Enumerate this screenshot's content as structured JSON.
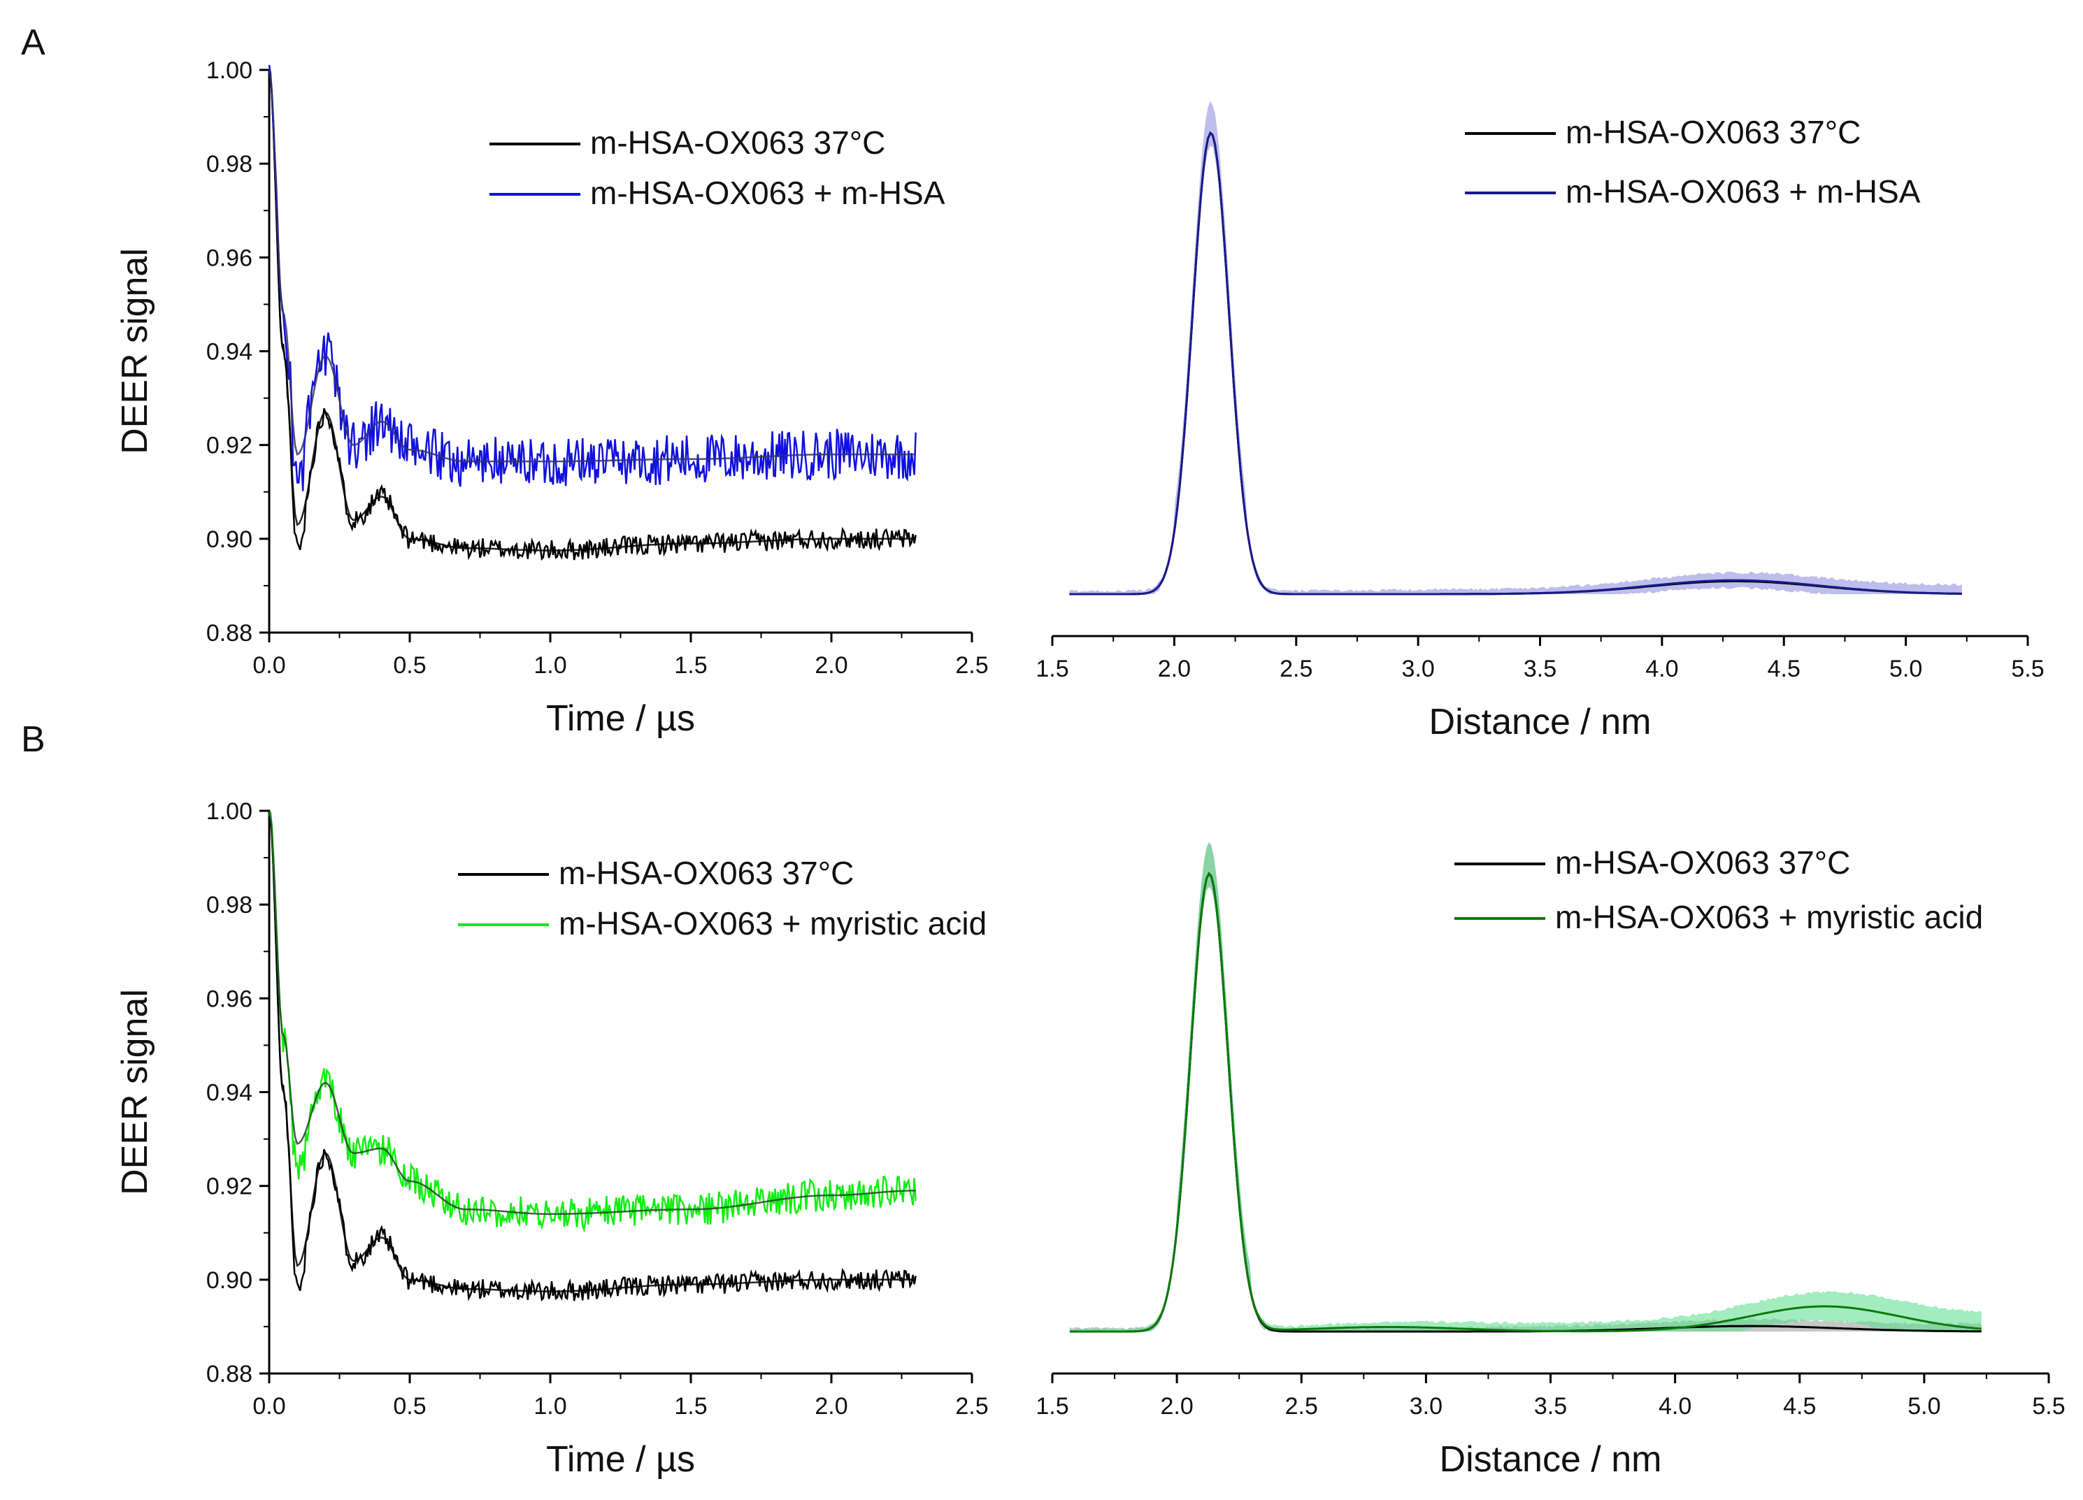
{
  "figure": {
    "panels": [
      {
        "letter": "A"
      },
      {
        "letter": "B"
      }
    ]
  },
  "chart_data": [
    {
      "id": "A-left",
      "panel": "A",
      "type": "line",
      "title": "",
      "xlabel": "Time / µs",
      "ylabel": "DEER signal",
      "xlim": [
        0.0,
        2.5
      ],
      "ylim": [
        0.88,
        1.0
      ],
      "xticks": [
        "0.0",
        "0.5",
        "1.0",
        "1.5",
        "2.0",
        "2.5"
      ],
      "yticks": [
        "0.88",
        "0.90",
        "0.92",
        "0.94",
        "0.96",
        "0.98",
        "1.00"
      ],
      "legend_position": "top-right",
      "series": [
        {
          "name": "m-HSA-OX063 37°C",
          "color": "#000000",
          "kind": "noisy_with_fit",
          "offset": 0.9,
          "osc": 0.05,
          "noise": 0.0022,
          "seed": 11,
          "fit_points": [
            [
              0,
              1.0
            ],
            [
              0.05,
              0.94
            ],
            [
              0.1,
              0.903
            ],
            [
              0.2,
              0.927
            ],
            [
              0.3,
              0.904
            ],
            [
              0.4,
              0.909
            ],
            [
              0.5,
              0.9
            ],
            [
              0.7,
              0.898
            ],
            [
              1.0,
              0.8975
            ],
            [
              1.5,
              0.899
            ],
            [
              2.0,
              0.9
            ],
            [
              2.3,
              0.9
            ]
          ]
        },
        {
          "name": "m-HSA-OX063 + m-HSA",
          "color": "#1111dd",
          "kind": "noisy_with_fit",
          "offset": 0.917,
          "osc": 0.04,
          "noise": 0.0055,
          "seed": 23,
          "fit_points": [
            [
              0,
              1.0
            ],
            [
              0.05,
              0.948
            ],
            [
              0.1,
              0.918
            ],
            [
              0.2,
              0.939
            ],
            [
              0.3,
              0.92
            ],
            [
              0.4,
              0.925
            ],
            [
              0.5,
              0.919
            ],
            [
              0.7,
              0.9165
            ],
            [
              1.0,
              0.9165
            ],
            [
              1.5,
              0.917
            ],
            [
              2.0,
              0.918
            ],
            [
              2.3,
              0.918
            ]
          ]
        }
      ]
    },
    {
      "id": "A-right",
      "panel": "A",
      "type": "line",
      "title": "",
      "xlabel": "Distance / nm",
      "ylabel": "",
      "xlim": [
        1.5,
        5.5
      ],
      "xticks": [
        "1.5",
        "2.0",
        "2.5",
        "3.0",
        "3.5",
        "4.0",
        "4.5",
        "5.0",
        "5.5"
      ],
      "legend_position": "top-right",
      "series": [
        {
          "name": "m-HSA-OX063 37°C",
          "color": "#000000",
          "band": false,
          "peaks": [
            {
              "mu": 2.15,
              "sigma": 0.075,
              "amp": 1.0
            },
            {
              "mu": 4.3,
              "sigma": 0.35,
              "amp": 0.028
            }
          ],
          "tail": 0.013
        },
        {
          "name": "m-HSA-OX063 + m-HSA",
          "color": "#1a1a8c",
          "band": true,
          "band_color": "#8888dd",
          "peaks": [
            {
              "mu": 2.15,
              "sigma": 0.075,
              "amp": 1.0
            },
            {
              "mu": 4.3,
              "sigma": 0.35,
              "amp": 0.03
            }
          ],
          "tail": 0.013
        }
      ]
    },
    {
      "id": "B-left",
      "panel": "B",
      "type": "line",
      "title": "",
      "xlabel": "Time / µs",
      "ylabel": "DEER signal",
      "xlim": [
        0.0,
        2.5
      ],
      "ylim": [
        0.88,
        1.0
      ],
      "xticks": [
        "0.0",
        "0.5",
        "1.0",
        "1.5",
        "2.0",
        "2.5"
      ],
      "yticks": [
        "0.88",
        "0.90",
        "0.92",
        "0.94",
        "0.96",
        "0.98",
        "1.00"
      ],
      "legend_position": "top-right",
      "series": [
        {
          "name": "m-HSA-OX063 37°C",
          "color": "#000000",
          "kind": "noisy_with_fit",
          "offset": 0.9,
          "osc": 0.05,
          "noise": 0.0022,
          "seed": 11,
          "fit_points": [
            [
              0,
              1.0
            ],
            [
              0.05,
              0.94
            ],
            [
              0.1,
              0.903
            ],
            [
              0.2,
              0.927
            ],
            [
              0.3,
              0.904
            ],
            [
              0.4,
              0.909
            ],
            [
              0.5,
              0.9
            ],
            [
              0.7,
              0.898
            ],
            [
              1.0,
              0.8975
            ],
            [
              1.5,
              0.899
            ],
            [
              2.0,
              0.9
            ],
            [
              2.3,
              0.9
            ]
          ]
        },
        {
          "name": "m-HSA-OX063 + myristic acid",
          "color": "#11ee11",
          "kind": "noisy_with_fit",
          "offset": 0.915,
          "osc": 0.03,
          "noise": 0.0035,
          "seed": 37,
          "fit_points": [
            [
              0,
              1.0
            ],
            [
              0.05,
              0.952
            ],
            [
              0.1,
              0.929
            ],
            [
              0.2,
              0.942
            ],
            [
              0.3,
              0.927
            ],
            [
              0.4,
              0.928
            ],
            [
              0.5,
              0.921
            ],
            [
              0.7,
              0.915
            ],
            [
              1.0,
              0.914
            ],
            [
              1.5,
              0.915
            ],
            [
              2.0,
              0.918
            ],
            [
              2.3,
              0.919
            ]
          ]
        }
      ]
    },
    {
      "id": "B-right",
      "panel": "B",
      "type": "line",
      "title": "",
      "xlabel": "Distance / nm",
      "ylabel": "",
      "xlim": [
        1.5,
        5.5
      ],
      "xticks": [
        "1.5",
        "2.0",
        "2.5",
        "3.0",
        "3.5",
        "4.0",
        "4.5",
        "5.0",
        "5.5"
      ],
      "legend_position": "top-right",
      "series": [
        {
          "name": "m-HSA-OX063 37°C",
          "color": "#000000",
          "band": true,
          "band_color": "#999999",
          "peaks": [
            {
              "mu": 2.13,
              "sigma": 0.075,
              "amp": 1.0
            },
            {
              "mu": 4.3,
              "sigma": 0.35,
              "amp": 0.012
            }
          ],
          "tail": 0.01
        },
        {
          "name": "m-HSA-OX063 + myristic acid",
          "color": "#0a7a0a",
          "band": true,
          "band_color": "#55dd88",
          "peaks": [
            {
              "mu": 2.13,
              "sigma": 0.075,
              "amp": 1.0
            },
            {
              "mu": 2.85,
              "sigma": 0.3,
              "amp": 0.01
            },
            {
              "mu": 4.6,
              "sigma": 0.3,
              "amp": 0.055
            }
          ],
          "tail": 0.03
        }
      ]
    }
  ]
}
